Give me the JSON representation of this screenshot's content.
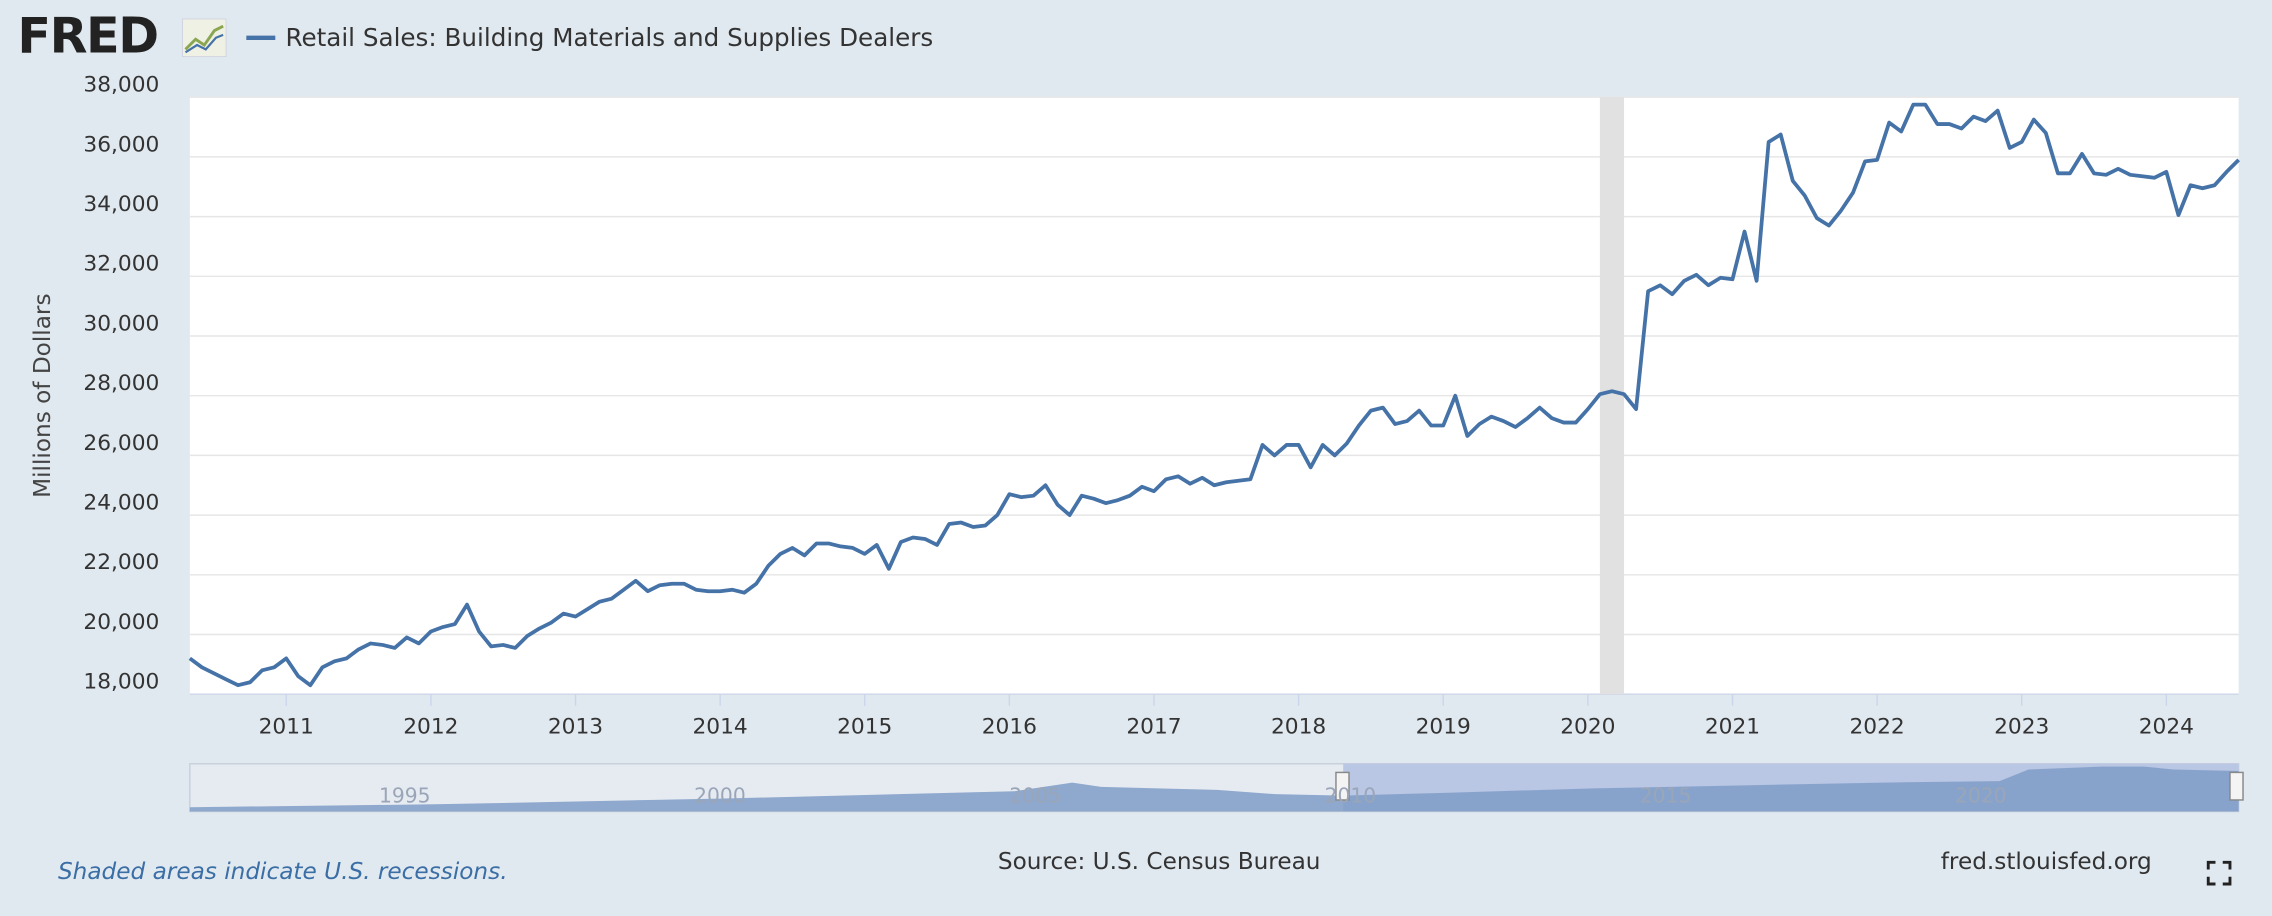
{
  "chart_data": {
    "type": "line",
    "logo": "FRED",
    "ylabel": "Millions of Dollars",
    "note": "Shaded areas indicate U.S. recessions.",
    "source": "Source: U.S. Census Bureau",
    "site": "fred.stlouisfed.org",
    "xlim": [
      2010.3333,
      2024.5
    ],
    "xticks": [
      2011,
      2012,
      2013,
      2014,
      2015,
      2016,
      2017,
      2018,
      2019,
      2020,
      2021,
      2022,
      2023,
      2024
    ],
    "ylim": [
      18000,
      38000
    ],
    "yticks": [
      {
        "value": 18000,
        "label": "18,000"
      },
      {
        "value": 20000,
        "label": "20,000"
      },
      {
        "value": 22000,
        "label": "22,000"
      },
      {
        "value": 24000,
        "label": "24,000"
      },
      {
        "value": 26000,
        "label": "26,000"
      },
      {
        "value": 28000,
        "label": "28,000"
      },
      {
        "value": 30000,
        "label": "30,000"
      },
      {
        "value": 32000,
        "label": "32,000"
      },
      {
        "value": 34000,
        "label": "34,000"
      },
      {
        "value": 36000,
        "label": "36,000"
      },
      {
        "value": 38000,
        "label": "38,000"
      }
    ],
    "grid": true,
    "recessions": [
      {
        "start": 2020.0833,
        "end": 2020.25
      }
    ],
    "navigator": {
      "xlim": [
        1992,
        2024.5
      ],
      "xticks": [
        1995,
        2000,
        2005,
        2010,
        2015,
        2020
      ]
    },
    "x": [
      2010.3333,
      2010.4167,
      2010.5,
      2010.5833,
      2010.6667,
      2010.75,
      2010.8333,
      2010.9167,
      2011,
      2011.0833,
      2011.1667,
      2011.25,
      2011.3333,
      2011.4167,
      2011.5,
      2011.5833,
      2011.6667,
      2011.75,
      2011.8333,
      2011.9167,
      2012,
      2012.0833,
      2012.1667,
      2012.25,
      2012.3333,
      2012.4167,
      2012.5,
      2012.5833,
      2012.6667,
      2012.75,
      2012.8333,
      2012.9167,
      2013,
      2013.0833,
      2013.1667,
      2013.25,
      2013.3333,
      2013.4167,
      2013.5,
      2013.5833,
      2013.6667,
      2013.75,
      2013.8333,
      2013.9167,
      2014,
      2014.0833,
      2014.1667,
      2014.25,
      2014.3333,
      2014.4167,
      2014.5,
      2014.5833,
      2014.6667,
      2014.75,
      2014.8333,
      2014.9167,
      2015,
      2015.0833,
      2015.1667,
      2015.25,
      2015.3333,
      2015.4167,
      2015.5,
      2015.5833,
      2015.6667,
      2015.75,
      2015.8333,
      2015.9167,
      2016,
      2016.0833,
      2016.1667,
      2016.25,
      2016.3333,
      2016.4167,
      2016.5,
      2016.5833,
      2016.6667,
      2016.75,
      2016.8333,
      2016.9167,
      2017,
      2017.0833,
      2017.1667,
      2017.25,
      2017.3333,
      2017.4167,
      2017.5,
      2017.5833,
      2017.6667,
      2017.75,
      2017.8333,
      2017.9167,
      2018,
      2018.0833,
      2018.1667,
      2018.25,
      2018.3333,
      2018.4167,
      2018.5,
      2018.5833,
      2018.6667,
      2018.75,
      2018.8333,
      2018.9167,
      2019,
      2019.0833,
      2019.1667,
      2019.25,
      2019.3333,
      2019.4167,
      2019.5,
      2019.5833,
      2019.6667,
      2019.75,
      2019.8333,
      2019.9167,
      2020,
      2020.0833,
      2020.1667,
      2020.25,
      2020.3333,
      2020.4167,
      2020.5,
      2020.5833,
      2020.6667,
      2020.75,
      2020.8333,
      2020.9167,
      2021,
      2021.0833,
      2021.1667,
      2021.25,
      2021.3333,
      2021.4167,
      2021.5,
      2021.5833,
      2021.6667,
      2021.75,
      2021.8333,
      2021.9167,
      2022,
      2022.0833,
      2022.1667,
      2022.25,
      2022.3333,
      2022.4167,
      2022.5,
      2022.5833,
      2022.6667,
      2022.75,
      2022.8333,
      2022.9167,
      2023,
      2023.0833,
      2023.1667,
      2023.25,
      2023.3333,
      2023.4167,
      2023.5,
      2023.5833,
      2023.6667,
      2023.75,
      2023.8333,
      2023.9167,
      2024,
      2024.0833,
      2024.1667,
      2024.25,
      2024.3333,
      2024.4167,
      2024.5
    ],
    "series": [
      {
        "name": "Retail Sales: Building Materials and Supplies Dealers",
        "color": "#4572a7",
        "values": [
          19200,
          18900,
          18700,
          18500,
          18300,
          18400,
          18800,
          18900,
          19200,
          18600,
          18300,
          18900,
          19100,
          19200,
          19500,
          19700,
          19650,
          19550,
          19900,
          19700,
          20100,
          20250,
          20350,
          21000,
          20100,
          19600,
          19650,
          19550,
          19950,
          20200,
          20400,
          20700,
          20600,
          20850,
          21100,
          21200,
          21500,
          21800,
          21450,
          21650,
          21700,
          21700,
          21500,
          21450,
          21450,
          21500,
          21400,
          21700,
          22300,
          22700,
          22900,
          22650,
          23050,
          23050,
          22950,
          22900,
          22700,
          23000,
          22200,
          23100,
          23250,
          23200,
          23000,
          23700,
          23750,
          23600,
          23650,
          24000,
          24700,
          24600,
          24650,
          25000,
          24350,
          24000,
          24650,
          24550,
          24400,
          24500,
          24650,
          24950,
          24800,
          25200,
          25300,
          25050,
          25250,
          25000,
          25100,
          25150,
          25200,
          26350,
          26000,
          26350,
          26350,
          25600,
          26350,
          26000,
          26400,
          27000,
          27500,
          27600,
          27050,
          27150,
          27500,
          27000,
          27000,
          28000,
          26650,
          27050,
          27300,
          27150,
          26950,
          27250,
          27600,
          27250,
          27100,
          27100,
          27550,
          28050,
          28150,
          28050,
          27550,
          31500,
          31700,
          31400,
          31850,
          32050,
          31700,
          31950,
          31900,
          33500,
          31850,
          36500,
          36750,
          35200,
          34700,
          33950,
          33700,
          34200,
          34800,
          35850,
          35900,
          37150,
          36850,
          37750,
          37750,
          37100,
          37100,
          36950,
          37350,
          37200,
          37550,
          36300,
          36500,
          37250,
          36800,
          35450,
          35450,
          36100,
          35450,
          35400,
          35600,
          35400,
          35350,
          35300,
          35500,
          34050,
          35050,
          34950,
          35050,
          35500,
          35900
        ]
      }
    ]
  }
}
